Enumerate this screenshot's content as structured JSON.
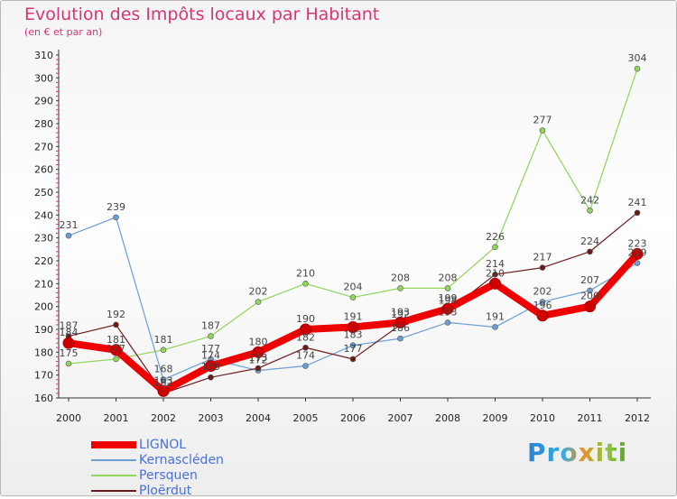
{
  "chart_data": {
    "type": "line",
    "title": "Evolution des Impôts locaux par Habitant",
    "subtitle": "(en € et par an)",
    "xlabel": "",
    "ylabel": "",
    "categories": [
      "2000",
      "2001",
      "2002",
      "2003",
      "2004",
      "2005",
      "2006",
      "2007",
      "2008",
      "2009",
      "2010",
      "2011",
      "2012"
    ],
    "ylim": [
      160,
      310
    ],
    "yticks": [
      160,
      170,
      180,
      190,
      200,
      210,
      220,
      230,
      240,
      250,
      260,
      270,
      280,
      290,
      300,
      310
    ],
    "grid": false,
    "legend_position": "bottom-left",
    "series": [
      {
        "name": "LIGNOL",
        "color": "#ee0000",
        "values": [
          184,
          181,
          163,
          174,
          180,
          190,
          191,
          193,
          199,
          210,
          196,
          200,
          223
        ]
      },
      {
        "name": "Kernascléden",
        "color": "#6b9ed4",
        "values": [
          231,
          239,
          168,
          177,
          172,
          174,
          183,
          186,
          193,
          191,
          202,
          207,
          219
        ]
      },
      {
        "name": "Persquen",
        "color": "#8fd65a",
        "values": [
          175,
          177,
          181,
          187,
          202,
          210,
          204,
          208,
          208,
          226,
          277,
          242,
          304
        ]
      },
      {
        "name": "Ploërdut",
        "color": "#6b1a1a",
        "values": [
          187,
          192,
          162,
          169,
          173,
          182,
          177,
          192,
          198,
          214,
          217,
          224,
          241
        ]
      }
    ]
  },
  "branding": {
    "logo_text": "Proxiti"
  }
}
